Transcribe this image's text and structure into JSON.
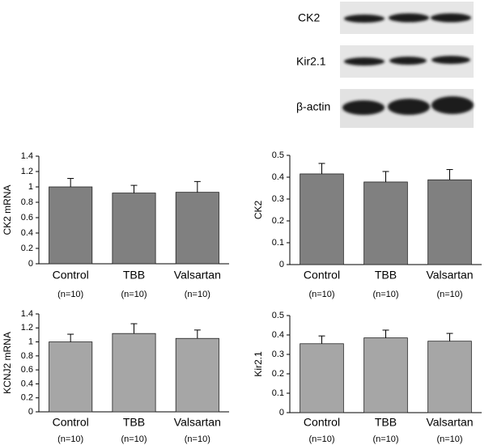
{
  "blot": {
    "labels": [
      "CK2",
      "Kir2.1",
      "β-actin"
    ]
  },
  "chart_data": [
    {
      "type": "bar",
      "y_label": "CK2 mRNA",
      "categories": [
        "Control",
        "TBB",
        "Valsartan"
      ],
      "annotations": [
        "(n=10)",
        "(n=10)",
        "(n=10)"
      ],
      "values": [
        1.0,
        0.92,
        0.93
      ],
      "errors": [
        0.11,
        0.1,
        0.14
      ],
      "color": "#808080",
      "ylim": [
        0,
        1.4
      ],
      "yticks": [
        0,
        0.2,
        0.4,
        0.6,
        0.8,
        1,
        1.2,
        1.4
      ]
    },
    {
      "type": "bar",
      "y_label": "CK2",
      "categories": [
        "Control",
        "TBB",
        "Valsartan"
      ],
      "annotations": [
        "(n=10)",
        "(n=10)",
        "(n=10)"
      ],
      "values": [
        0.415,
        0.378,
        0.388
      ],
      "errors": [
        0.048,
        0.048,
        0.047
      ],
      "color": "#808080",
      "ylim": [
        0,
        0.5
      ],
      "yticks": [
        0,
        0.1,
        0.2,
        0.3,
        0.4,
        0.5
      ]
    },
    {
      "type": "bar",
      "y_label": "KCNJ2 mRNA",
      "categories": [
        "Control",
        "TBB",
        "Valsartan"
      ],
      "annotations": [
        "(n=10)",
        "(n=10)",
        "(n=10)"
      ],
      "values": [
        1.0,
        1.12,
        1.05
      ],
      "errors": [
        0.11,
        0.14,
        0.12
      ],
      "color": "#a6a6a6",
      "ylim": [
        0,
        1.4
      ],
      "yticks": [
        0,
        0.2,
        0.4,
        0.6,
        0.8,
        1,
        1.2,
        1.4
      ]
    },
    {
      "type": "bar",
      "y_label": "Kir2.1",
      "categories": [
        "Control",
        "TBB",
        "Valsartan"
      ],
      "annotations": [
        "(n=10)",
        "(n=10)",
        "(n=10)"
      ],
      "values": [
        0.355,
        0.385,
        0.368
      ],
      "errors": [
        0.04,
        0.04,
        0.04
      ],
      "color": "#a6a6a6",
      "ylim": [
        0,
        0.5
      ],
      "yticks": [
        0,
        0.1,
        0.2,
        0.3,
        0.4,
        0.5
      ]
    }
  ]
}
